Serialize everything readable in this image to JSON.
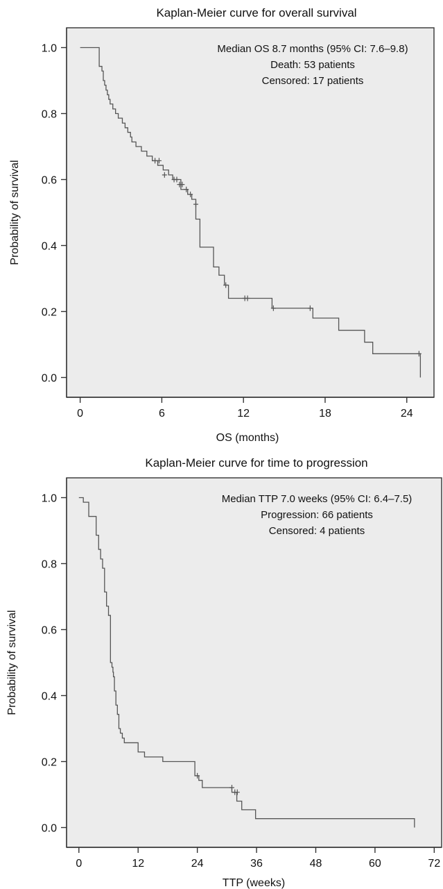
{
  "chart_data": [
    {
      "type": "line",
      "title": "Kaplan-Meier curve for overall survival",
      "xlabel": "OS (months)",
      "ylabel": "Probability of survival",
      "xlim": [
        -1,
        26
      ],
      "ylim": [
        -0.06,
        1.06
      ],
      "xticks": [
        0,
        6,
        12,
        18,
        24
      ],
      "yticks": [
        "0.0",
        "0.2",
        "0.4",
        "0.6",
        "0.8",
        "1.0"
      ],
      "annotations": [
        "Median OS 8.7 months (95% CI: 7.6–9.8)",
        "Death: 53 patients",
        "Censored: 17 patients"
      ],
      "series": [
        {
          "x": [
            0,
            1.4,
            1.6,
            1.7,
            1.8,
            1.9,
            2.0,
            2.1,
            2.2,
            2.4,
            2.6,
            2.8,
            3.1,
            3.3,
            3.5,
            3.7,
            3.8,
            4.1,
            4.5,
            4.9,
            5.3,
            5.7,
            6.1,
            6.5,
            6.8,
            7.4,
            7.9,
            8.2,
            8.5,
            8.8,
            9.8,
            10.2,
            10.6,
            10.9,
            12.6,
            14.1,
            17.1,
            19.0,
            20.9,
            21.5,
            25.0
          ],
          "y": [
            1.0,
            0.943,
            0.929,
            0.9,
            0.886,
            0.871,
            0.857,
            0.843,
            0.829,
            0.814,
            0.8,
            0.786,
            0.771,
            0.757,
            0.743,
            0.729,
            0.714,
            0.7,
            0.686,
            0.671,
            0.657,
            0.643,
            0.629,
            0.614,
            0.6,
            0.57,
            0.555,
            0.54,
            0.48,
            0.395,
            0.335,
            0.31,
            0.28,
            0.24,
            0.24,
            0.21,
            0.18,
            0.143,
            0.107,
            0.072,
            0.0
          ],
          "censored_x": [
            5.5,
            5.8,
            6.2,
            6.9,
            7.1,
            7.3,
            7.5,
            7.8,
            8.1,
            8.5,
            10.7,
            12.1,
            12.3,
            14.2,
            16.9,
            24.9
          ],
          "censored_y": [
            0.657,
            0.657,
            0.614,
            0.6,
            0.6,
            0.585,
            0.585,
            0.57,
            0.555,
            0.525,
            0.28,
            0.24,
            0.24,
            0.21,
            0.21,
            0.072
          ]
        }
      ]
    },
    {
      "type": "line",
      "title": "Kaplan-Meier curve for time to progression",
      "xlabel": "TTP (weeks)",
      "ylabel": "Probability of survival",
      "xlim": [
        -2.5,
        73.5
      ],
      "ylim": [
        -0.06,
        1.06
      ],
      "xticks": [
        0,
        12,
        24,
        36,
        48,
        60,
        72
      ],
      "yticks": [
        "0.0",
        "0.2",
        "0.4",
        "0.6",
        "0.8",
        "1.0"
      ],
      "annotations": [
        "Median TTP 7.0 weeks (95% CI: 6.4–7.5)",
        "Progression: 66 patients",
        "Censored: 4 patients"
      ],
      "series": [
        {
          "x": [
            0,
            0.9,
            2.0,
            3.5,
            4.0,
            4.4,
            4.8,
            5.2,
            5.6,
            6.0,
            6.4,
            6.7,
            6.9,
            7.0,
            7.2,
            7.5,
            7.8,
            8.1,
            8.4,
            8.8,
            9.2,
            10.0,
            12.0,
            13.3,
            17.0,
            23.5,
            24.3,
            25.0,
            31.0,
            32.0,
            33.0,
            35.8,
            68.0
          ],
          "y": [
            1.0,
            0.986,
            0.943,
            0.886,
            0.843,
            0.814,
            0.786,
            0.714,
            0.671,
            0.643,
            0.5,
            0.486,
            0.471,
            0.457,
            0.414,
            0.371,
            0.343,
            0.3,
            0.286,
            0.271,
            0.257,
            0.257,
            0.229,
            0.214,
            0.2,
            0.157,
            0.143,
            0.121,
            0.107,
            0.08,
            0.054,
            0.027,
            0.0
          ],
          "censored_x": [
            24.0,
            31.0,
            31.6,
            32.1
          ],
          "censored_y": [
            0.157,
            0.121,
            0.107,
            0.107
          ]
        }
      ]
    }
  ]
}
